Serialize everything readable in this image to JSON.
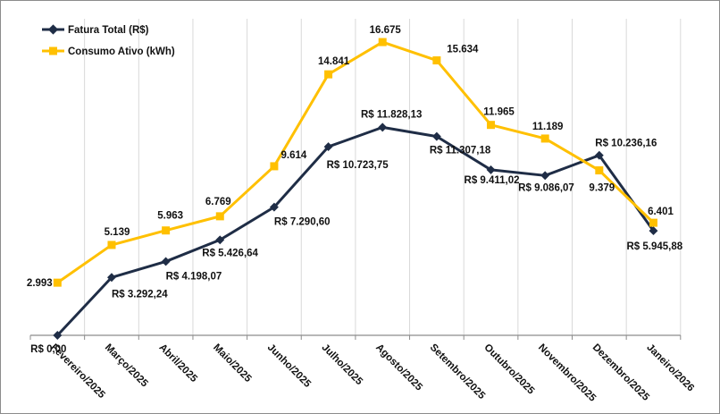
{
  "chart_data": {
    "type": "line",
    "title": "",
    "xlabel": "",
    "ylabel": "",
    "ylim": [
      0,
      18000
    ],
    "grid": "vertical",
    "legend_position": "top-left",
    "categories": [
      "Fevereiro/2025",
      "Março/2025",
      "Abril/2025",
      "Maio/2025",
      "Junho/2025",
      "Julho/2025",
      "Agosto/2025",
      "Setembro/2025",
      "Outubro/2025",
      "Novembro/2025",
      "Dezembro/2025",
      "Janeiro/2026"
    ],
    "series": [
      {
        "name": "Fatura Total (R$)",
        "color": "#1f2d46",
        "marker": "diamond",
        "values": [
          0,
          3292.24,
          4198.07,
          5426.64,
          7290.6,
          10723.75,
          11828.13,
          11307.18,
          9411.02,
          9086.07,
          10236.16,
          5945.88
        ],
        "labels": [
          "R$ 0,00",
          "R$ 3.292,24",
          "R$ 4.198,07",
          "R$ 5.426,64",
          "R$ 7.290,60",
          "R$ 10.723,75",
          "R$ 11.828,13",
          "R$ 11.307,18",
          "R$ 9.411,02",
          "R$ 9.086,07",
          "R$ 10.236,16",
          "R$ 5.945,88"
        ]
      },
      {
        "name": "Consumo Ativo (kWh)",
        "color": "#ffc000",
        "marker": "square",
        "values": [
          2993,
          5139,
          5963,
          6769,
          9614,
          14841,
          16675,
          15634,
          11965,
          11189,
          9379,
          6401
        ],
        "labels": [
          "2.993",
          "5.139",
          "5.963",
          "6.769",
          "9.614",
          "14.841",
          "16.675",
          "15.634",
          "11.965",
          "11.189",
          "9.379",
          "6.401"
        ]
      }
    ]
  }
}
